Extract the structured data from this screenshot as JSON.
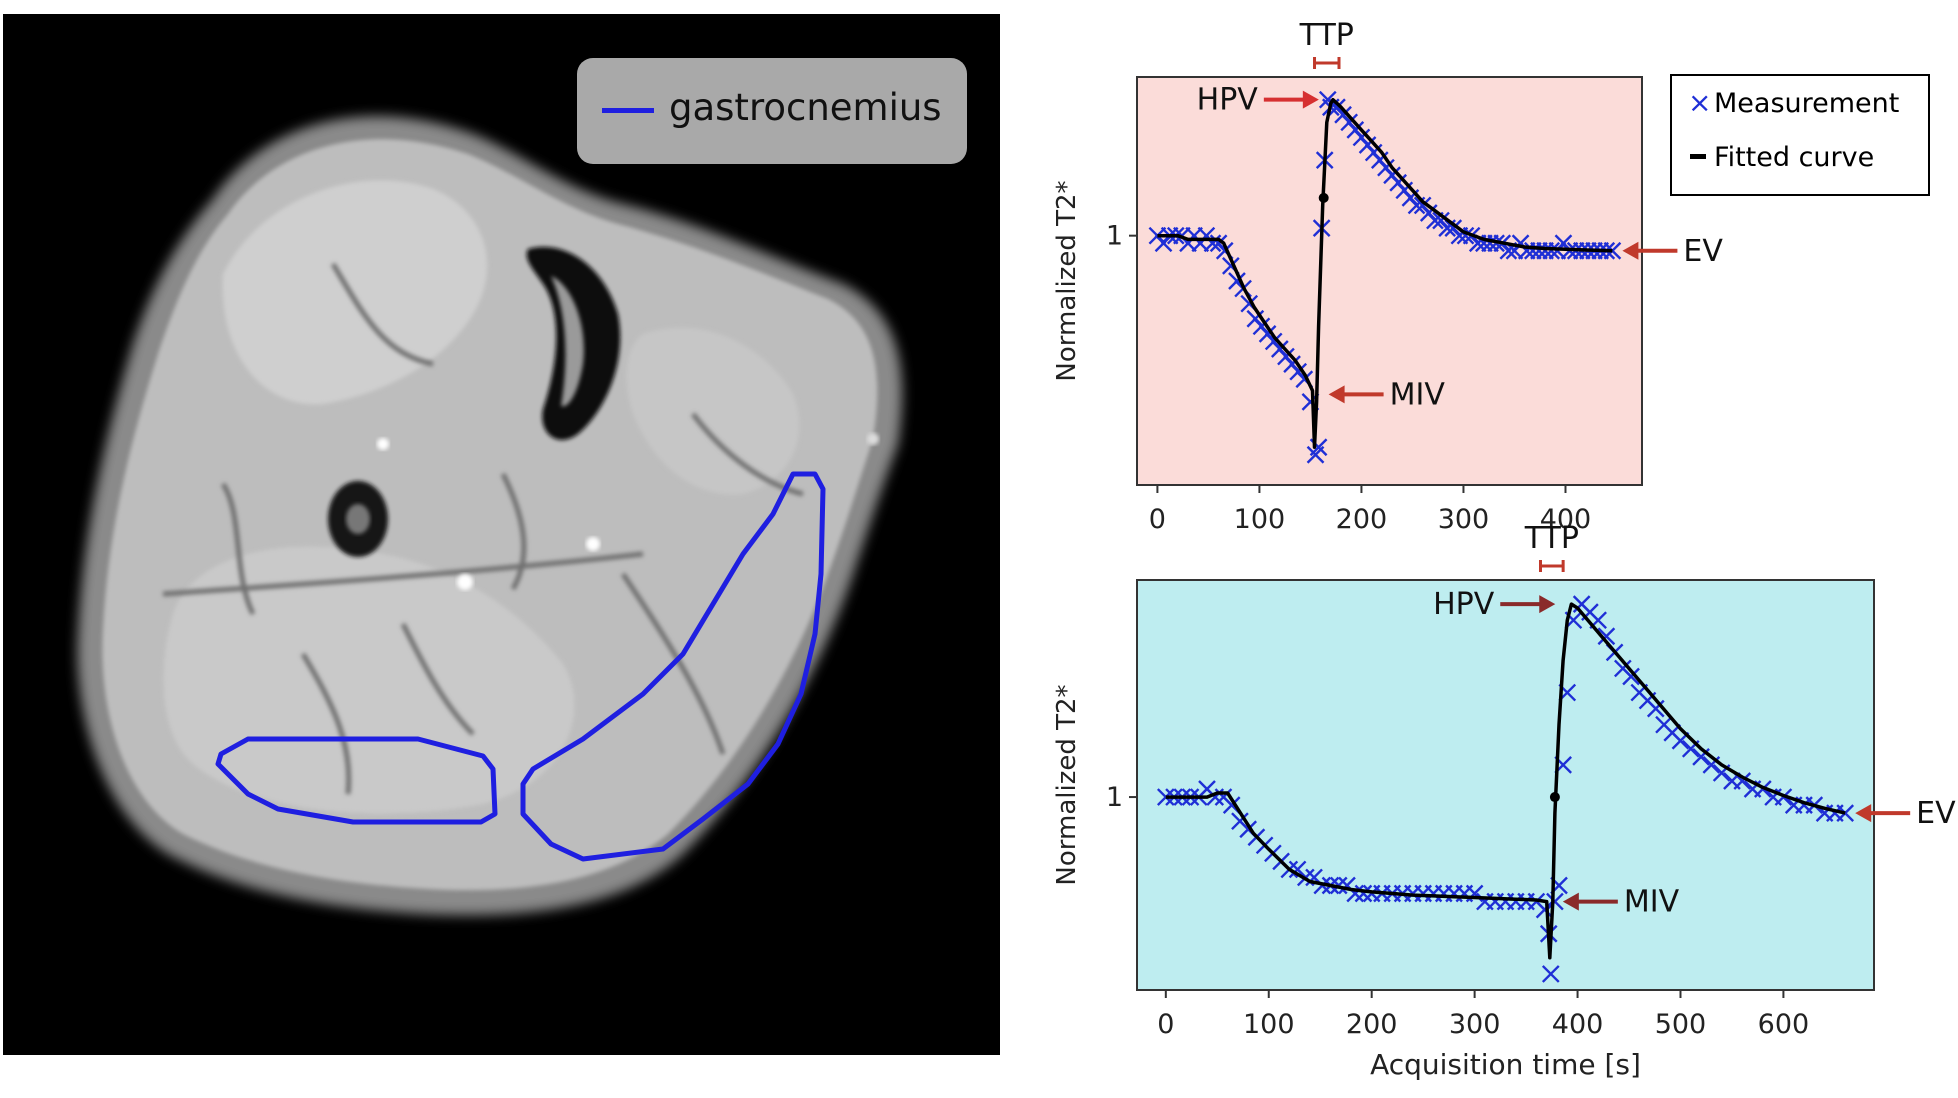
{
  "mri": {
    "legend_label": "gastrocnemius",
    "roi_color": "#1f1fe0"
  },
  "legend": {
    "measurement_label": "Measurement",
    "fitted_label": "Fitted curve",
    "marker_symbol": "×",
    "marker_color": "#1f2fd6",
    "line_color": "#000000"
  },
  "chart_data": [
    {
      "type": "scatter",
      "title": "",
      "xlabel": "",
      "ylabel": "Normalized T2*",
      "background": "#fbdcd9",
      "xlim": [
        -20,
        475
      ],
      "ylim": [
        0.67,
        1.21
      ],
      "xticks": [
        0,
        100,
        200,
        300,
        400
      ],
      "yticks": [
        1
      ],
      "grid": false,
      "series": [
        {
          "name": "Measurement",
          "kind": "markers",
          "marker": "x",
          "color": "#1f2fd6",
          "x": [
            0,
            6,
            12,
            18,
            24,
            30,
            36,
            42,
            48,
            54,
            60,
            66,
            72,
            78,
            84,
            90,
            96,
            102,
            108,
            114,
            120,
            126,
            132,
            138,
            144,
            150,
            155,
            158,
            161,
            164,
            167,
            170,
            176,
            182,
            188,
            194,
            200,
            206,
            212,
            218,
            224,
            230,
            236,
            242,
            248,
            254,
            260,
            266,
            272,
            278,
            284,
            290,
            296,
            302,
            308,
            314,
            320,
            326,
            332,
            338,
            344,
            350,
            356,
            362,
            368,
            374,
            380,
            386,
            392,
            398,
            404,
            410,
            416,
            422,
            428,
            434,
            440,
            446
          ],
          "y": [
            1.0,
            0.99,
            1.0,
            1.0,
            1.0,
            0.99,
            1.0,
            0.99,
            1.0,
            0.99,
            0.99,
            0.98,
            0.96,
            0.94,
            0.93,
            0.91,
            0.89,
            0.88,
            0.87,
            0.86,
            0.85,
            0.84,
            0.83,
            0.82,
            0.81,
            0.78,
            0.71,
            0.72,
            1.01,
            1.1,
            1.18,
            1.17,
            1.17,
            1.16,
            1.15,
            1.14,
            1.13,
            1.12,
            1.11,
            1.1,
            1.09,
            1.08,
            1.07,
            1.06,
            1.05,
            1.04,
            1.04,
            1.03,
            1.02,
            1.02,
            1.01,
            1.01,
            1.0,
            1.0,
            1.0,
            0.99,
            0.99,
            0.99,
            0.99,
            0.99,
            0.98,
            0.98,
            0.99,
            0.98,
            0.98,
            0.98,
            0.98,
            0.98,
            0.98,
            0.99,
            0.98,
            0.98,
            0.98,
            0.98,
            0.98,
            0.98,
            0.98,
            0.98
          ]
        },
        {
          "name": "Fitted curve",
          "kind": "line",
          "color": "#000000",
          "x": [
            0,
            10,
            20,
            30,
            40,
            50,
            60,
            65,
            75,
            85,
            95,
            105,
            115,
            125,
            135,
            145,
            152,
            154,
            156,
            158,
            162,
            166,
            170,
            172,
            176,
            180,
            190,
            200,
            210,
            220,
            230,
            240,
            250,
            260,
            270,
            280,
            290,
            300,
            320,
            340,
            360,
            380,
            400,
            420,
            446
          ],
          "y": [
            1.0,
            1.0,
            1.0,
            0.995,
            0.995,
            0.995,
            0.995,
            0.99,
            0.96,
            0.93,
            0.905,
            0.885,
            0.865,
            0.85,
            0.835,
            0.815,
            0.795,
            0.72,
            0.78,
            0.88,
            1.04,
            1.15,
            1.175,
            1.18,
            1.175,
            1.17,
            1.155,
            1.14,
            1.125,
            1.11,
            1.09,
            1.075,
            1.06,
            1.045,
            1.035,
            1.025,
            1.015,
            1.005,
            0.995,
            0.99,
            0.985,
            0.983,
            0.982,
            0.981,
            0.98
          ]
        },
        {
          "name": "Inflection point",
          "kind": "dot",
          "color": "#000000",
          "x": [
            163
          ],
          "y": [
            1.05
          ]
        }
      ],
      "annotations": [
        {
          "text": "TTP",
          "kind": "bracket",
          "x1": 154,
          "x2": 178,
          "color": "#c0392b"
        },
        {
          "text": "HPV",
          "kind": "arrow-left-of",
          "x": 170,
          "y": 1.18,
          "color": "#d63031"
        },
        {
          "text": "MIV",
          "kind": "arrow-right-of",
          "x": 158,
          "y": 0.79,
          "color": "#c0392b"
        },
        {
          "text": "EV",
          "kind": "arrow-right-of",
          "x": 446,
          "y": 0.98,
          "color": "#c0392b"
        }
      ]
    },
    {
      "type": "scatter",
      "title": "",
      "xlabel": "Acquisition time [s]",
      "ylabel": "Normalized T2*",
      "background": "#beedf0",
      "xlim": [
        -28,
        688
      ],
      "ylim": [
        0.76,
        1.27
      ],
      "xticks": [
        0,
        100,
        200,
        300,
        400,
        500,
        600
      ],
      "yticks": [
        1
      ],
      "grid": false,
      "series": [
        {
          "name": "Measurement",
          "kind": "markers",
          "marker": "x",
          "color": "#1f2fd6",
          "x": [
            0,
            8,
            16,
            24,
            32,
            40,
            48,
            56,
            64,
            72,
            80,
            88,
            96,
            104,
            112,
            120,
            128,
            136,
            144,
            152,
            160,
            168,
            176,
            184,
            192,
            200,
            210,
            220,
            230,
            240,
            250,
            260,
            270,
            280,
            290,
            300,
            310,
            320,
            330,
            340,
            350,
            360,
            368,
            372,
            374,
            378,
            382,
            386,
            390,
            396,
            404,
            412,
            420,
            428,
            436,
            444,
            452,
            460,
            468,
            476,
            484,
            492,
            500,
            510,
            520,
            530,
            540,
            550,
            560,
            570,
            580,
            590,
            600,
            610,
            620,
            630,
            640,
            650,
            660
          ],
          "y": [
            1.0,
            1.0,
            1.0,
            1.0,
            1.0,
            1.01,
            1.0,
            1.0,
            0.99,
            0.97,
            0.96,
            0.95,
            0.94,
            0.93,
            0.92,
            0.91,
            0.91,
            0.9,
            0.9,
            0.89,
            0.89,
            0.89,
            0.89,
            0.88,
            0.88,
            0.88,
            0.88,
            0.88,
            0.88,
            0.88,
            0.88,
            0.88,
            0.88,
            0.88,
            0.88,
            0.88,
            0.87,
            0.87,
            0.87,
            0.87,
            0.87,
            0.87,
            0.86,
            0.83,
            0.78,
            0.87,
            0.89,
            1.04,
            1.13,
            1.22,
            1.24,
            1.23,
            1.22,
            1.2,
            1.18,
            1.16,
            1.15,
            1.13,
            1.12,
            1.11,
            1.09,
            1.08,
            1.07,
            1.06,
            1.05,
            1.04,
            1.03,
            1.02,
            1.02,
            1.01,
            1.01,
            1.0,
            1.0,
            0.99,
            0.99,
            0.99,
            0.98,
            0.98,
            0.98
          ]
        },
        {
          "name": "Fitted curve",
          "kind": "line",
          "color": "#000000",
          "x": [
            0,
            10,
            20,
            30,
            40,
            50,
            60,
            70,
            85,
            100,
            120,
            140,
            160,
            180,
            200,
            220,
            240,
            260,
            280,
            300,
            320,
            340,
            360,
            370,
            373,
            376,
            378,
            382,
            386,
            390,
            394,
            400,
            420,
            440,
            460,
            480,
            500,
            520,
            540,
            560,
            580,
            600,
            620,
            640,
            660
          ],
          "y": [
            1.0,
            1.0,
            1.0,
            1.0,
            1.0,
            1.005,
            1.005,
            0.985,
            0.955,
            0.935,
            0.91,
            0.895,
            0.89,
            0.885,
            0.882,
            0.88,
            0.878,
            0.877,
            0.876,
            0.875,
            0.874,
            0.873,
            0.872,
            0.87,
            0.8,
            0.87,
            0.98,
            1.09,
            1.17,
            1.22,
            1.24,
            1.235,
            1.205,
            1.175,
            1.145,
            1.115,
            1.085,
            1.06,
            1.04,
            1.025,
            1.012,
            1.002,
            0.993,
            0.986,
            0.98
          ]
        },
        {
          "name": "Inflection point",
          "kind": "dot",
          "color": "#000000",
          "x": [
            378
          ],
          "y": [
            1.0
          ]
        }
      ],
      "annotations": [
        {
          "text": "TTP",
          "kind": "bracket",
          "x1": 364,
          "x2": 386,
          "color": "#c0392b"
        },
        {
          "text": "HPV",
          "kind": "arrow-left-of",
          "x": 390,
          "y": 1.24,
          "color": "#8a2a2a"
        },
        {
          "text": "MIV",
          "kind": "arrow-right-of",
          "x": 376,
          "y": 0.87,
          "color": "#8a2a2a"
        },
        {
          "text": "EV",
          "kind": "arrow-right-of",
          "x": 660,
          "y": 0.98,
          "color": "#c0392b"
        }
      ]
    }
  ]
}
